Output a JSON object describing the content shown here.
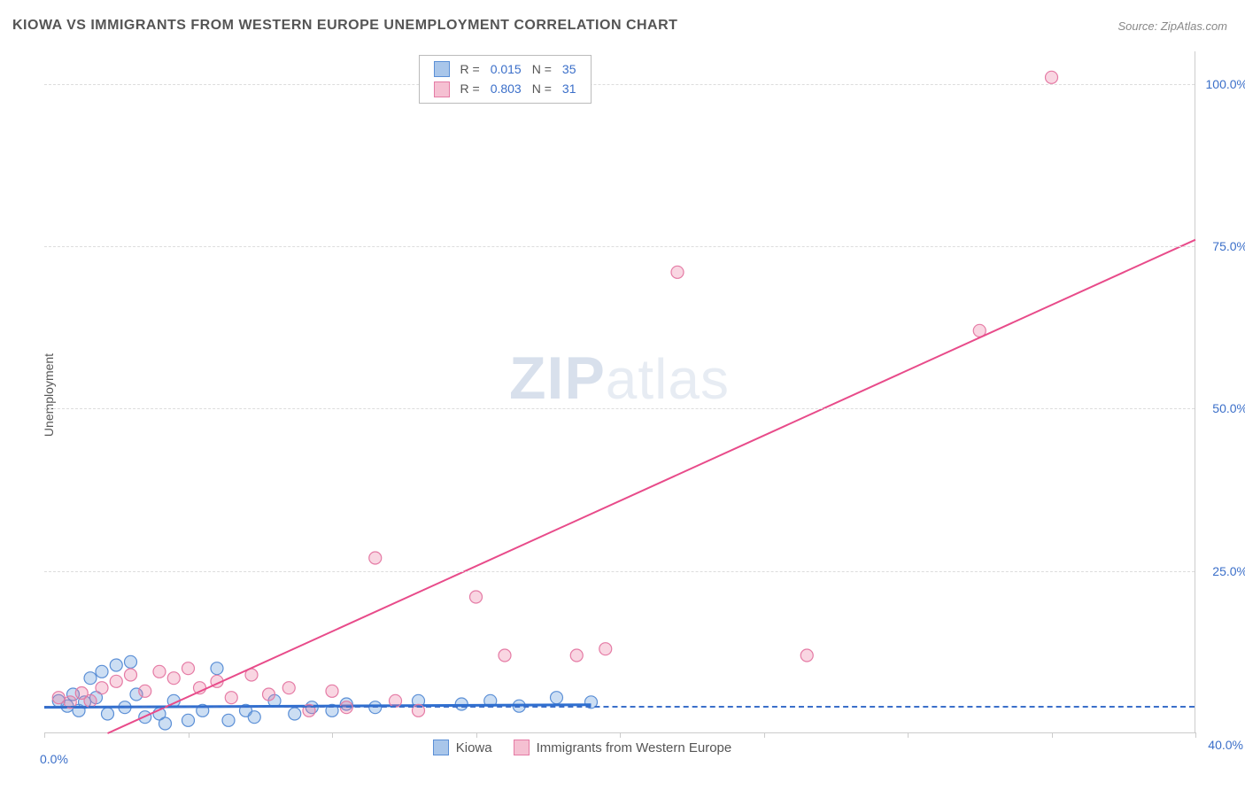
{
  "title": "KIOWA VS IMMIGRANTS FROM WESTERN EUROPE UNEMPLOYMENT CORRELATION CHART",
  "source": "Source: ZipAtlas.com",
  "ylabel": "Unemployment",
  "watermark_bold": "ZIP",
  "watermark_rest": "atlas",
  "chart": {
    "type": "scatter-with-regression",
    "background_color": "#ffffff",
    "grid_color": "#dddddd",
    "axis_color": "#cccccc",
    "label_color": "#3b6fc9",
    "text_color": "#555555",
    "xlim": [
      0,
      40
    ],
    "ylim": [
      0,
      105
    ],
    "xtick_positions": [
      0,
      5,
      10,
      15,
      20,
      25,
      30,
      35,
      40
    ],
    "xtick_labels": {
      "0": "0.0%",
      "40": "40.0%"
    },
    "ytick_positions": [
      25,
      50,
      75,
      100
    ],
    "ytick_labels": [
      "25.0%",
      "50.0%",
      "75.0%",
      "100.0%"
    ],
    "baseline_y": 4.2,
    "marker_radius": 7,
    "marker_stroke_width": 1.2,
    "line_width": 2,
    "series": [
      {
        "name": "Kiowa",
        "color_fill": "rgba(108,160,220,0.35)",
        "color_stroke": "#5b8fd6",
        "swatch_fill": "#a9c6ea",
        "swatch_border": "#5b8fd6",
        "r": "0.015",
        "n": "35",
        "regression": {
          "x1": 0,
          "y1": 4.0,
          "x2": 19,
          "y2": 4.4,
          "color": "#2f6fd0",
          "width": 3
        },
        "points": [
          [
            0.5,
            5
          ],
          [
            0.8,
            4.2
          ],
          [
            1.0,
            6
          ],
          [
            1.2,
            3.5
          ],
          [
            1.4,
            4.8
          ],
          [
            1.6,
            8.5
          ],
          [
            1.8,
            5.5
          ],
          [
            2.0,
            9.5
          ],
          [
            2.2,
            3
          ],
          [
            2.5,
            10.5
          ],
          [
            2.8,
            4
          ],
          [
            3.0,
            11
          ],
          [
            3.2,
            6
          ],
          [
            3.5,
            2.5
          ],
          [
            4.0,
            3
          ],
          [
            4.2,
            1.5
          ],
          [
            4.5,
            5
          ],
          [
            5.0,
            2
          ],
          [
            5.5,
            3.5
          ],
          [
            6.0,
            10
          ],
          [
            6.4,
            2
          ],
          [
            7.0,
            3.5
          ],
          [
            7.3,
            2.5
          ],
          [
            8.0,
            5
          ],
          [
            8.7,
            3
          ],
          [
            9.3,
            4
          ],
          [
            10.0,
            3.5
          ],
          [
            10.5,
            4.5
          ],
          [
            11.5,
            4
          ],
          [
            13.0,
            5
          ],
          [
            14.5,
            4.5
          ],
          [
            15.5,
            5
          ],
          [
            16.5,
            4.2
          ],
          [
            17.8,
            5.5
          ],
          [
            19.0,
            4.8
          ]
        ]
      },
      {
        "name": "Immigrants from Western Europe",
        "color_fill": "rgba(235,120,160,0.30)",
        "color_stroke": "#e57ba5",
        "swatch_fill": "#f5c0d2",
        "swatch_border": "#e57ba5",
        "r": "0.803",
        "n": "31",
        "regression": {
          "x1": 2.2,
          "y1": 0,
          "x2": 40,
          "y2": 76,
          "color": "#e84b8a",
          "width": 2
        },
        "points": [
          [
            0.5,
            5.5
          ],
          [
            0.9,
            4.8
          ],
          [
            1.3,
            6.2
          ],
          [
            1.6,
            5
          ],
          [
            2.0,
            7
          ],
          [
            2.5,
            8
          ],
          [
            3.0,
            9
          ],
          [
            3.5,
            6.5
          ],
          [
            4.0,
            9.5
          ],
          [
            4.5,
            8.5
          ],
          [
            5.0,
            10
          ],
          [
            5.4,
            7
          ],
          [
            6.0,
            8
          ],
          [
            6.5,
            5.5
          ],
          [
            7.2,
            9
          ],
          [
            7.8,
            6
          ],
          [
            8.5,
            7
          ],
          [
            9.2,
            3.5
          ],
          [
            10.0,
            6.5
          ],
          [
            10.5,
            4
          ],
          [
            11.5,
            27
          ],
          [
            12.2,
            5
          ],
          [
            13.0,
            3.5
          ],
          [
            15.0,
            21
          ],
          [
            16.0,
            12
          ],
          [
            18.5,
            12
          ],
          [
            19.5,
            13
          ],
          [
            22.0,
            71
          ],
          [
            26.5,
            12
          ],
          [
            32.5,
            62
          ],
          [
            35.0,
            101
          ]
        ]
      }
    ],
    "legend_top_labels": {
      "r_label": "R  =",
      "n_label": "N  ="
    },
    "legend_bottom": [
      {
        "label": "Kiowa",
        "series": 0
      },
      {
        "label": "Immigrants from Western Europe",
        "series": 1
      }
    ]
  }
}
